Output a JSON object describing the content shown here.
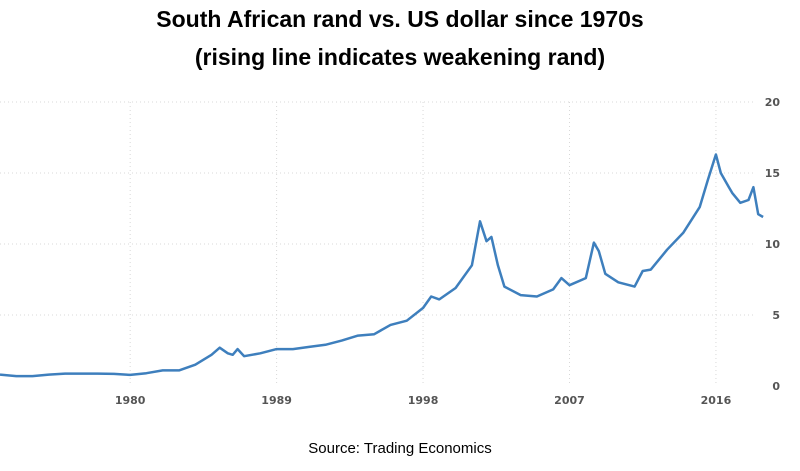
{
  "chart_data": {
    "type": "line",
    "title": "South African rand vs. US dollar since 1970s",
    "subtitle": "(rising line indicates weakening rand)",
    "source": "Source: Trading Economics",
    "xlabel": "",
    "ylabel": "",
    "xlim": [
      1972,
      2019.2
    ],
    "ylim": [
      0,
      20
    ],
    "x_ticks": [
      {
        "value": 1980,
        "label": "1980"
      },
      {
        "value": 1989,
        "label": "1989"
      },
      {
        "value": 1998,
        "label": "1998"
      },
      {
        "value": 2007,
        "label": "2007"
      },
      {
        "value": 2016,
        "label": "2016"
      }
    ],
    "y_ticks": [
      {
        "value": 0,
        "label": "0"
      },
      {
        "value": 5,
        "label": "5"
      },
      {
        "value": 10,
        "label": "10"
      },
      {
        "value": 15,
        "label": "15"
      },
      {
        "value": 20,
        "label": "20"
      }
    ],
    "grid": true,
    "line_color": "#3e7fbd",
    "grid_color": "#d8d8d8",
    "series": [
      {
        "name": "",
        "x": [
          1972,
          1973,
          1974,
          1975,
          1976,
          1977,
          1978,
          1979,
          1980,
          1981,
          1982,
          1983,
          1984,
          1985,
          1985.5,
          1986,
          1986.3,
          1986.6,
          1987,
          1988,
          1989,
          1990,
          1991,
          1992,
          1993,
          1994,
          1995,
          1996,
          1997,
          1998,
          1998.5,
          1999,
          2000,
          2001,
          2001.5,
          2001.9,
          2002.2,
          2002.6,
          2003,
          2004,
          2005,
          2006,
          2006.5,
          2007,
          2008,
          2008.5,
          2008.8,
          2009.2,
          2010,
          2011,
          2011.5,
          2012,
          2013,
          2014,
          2015,
          2015.5,
          2016,
          2016.3,
          2016.8,
          2017,
          2017.5,
          2018,
          2018.3,
          2018.6,
          2018.9
        ],
        "y": [
          0.8,
          0.7,
          0.7,
          0.8,
          0.87,
          0.87,
          0.87,
          0.85,
          0.78,
          0.9,
          1.1,
          1.1,
          1.5,
          2.2,
          2.7,
          2.3,
          2.2,
          2.6,
          2.1,
          2.3,
          2.6,
          2.6,
          2.75,
          2.9,
          3.2,
          3.55,
          3.65,
          4.3,
          4.6,
          5.5,
          6.3,
          6.1,
          6.9,
          8.5,
          11.6,
          10.2,
          10.5,
          8.5,
          7.0,
          6.4,
          6.3,
          6.8,
          7.6,
          7.1,
          7.6,
          10.1,
          9.5,
          7.9,
          7.3,
          7.0,
          8.1,
          8.2,
          9.6,
          10.8,
          12.6,
          14.5,
          16.3,
          15.0,
          14.0,
          13.6,
          12.9,
          13.1,
          14.0,
          12.1,
          11.9
        ]
      }
    ]
  }
}
